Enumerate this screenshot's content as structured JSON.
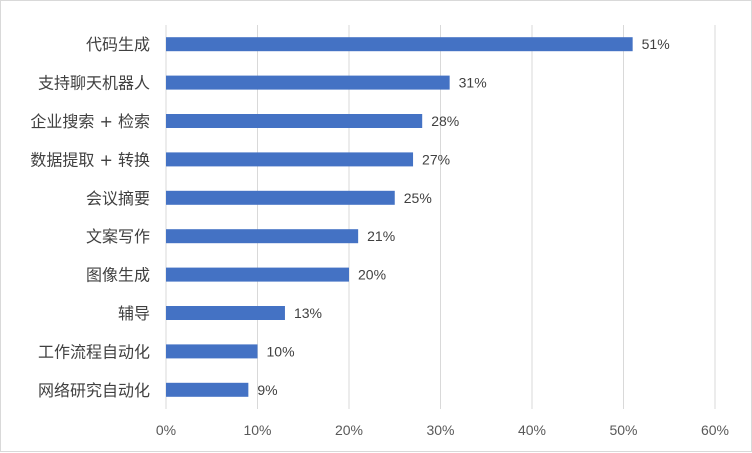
{
  "chart_data": {
    "type": "bar",
    "orientation": "horizontal",
    "title": "",
    "xlabel": "",
    "ylabel": "",
    "categories": [
      "代码生成",
      "支持聊天机器人",
      "企业搜索 + 检索",
      "数据提取 + 转换",
      "会议摘要",
      "文案写作",
      "图像生成",
      "辅导",
      "工作流程自动化",
      "网络研究自动化"
    ],
    "values": [
      51,
      31,
      28,
      27,
      25,
      21,
      20,
      13,
      10,
      9
    ],
    "value_labels": [
      "51%",
      "31%",
      "28%",
      "27%",
      "25%",
      "21%",
      "20%",
      "13%",
      "10%",
      "9%"
    ],
    "xlim": [
      0,
      60
    ],
    "x_ticks": [
      0,
      10,
      20,
      30,
      40,
      50,
      60
    ],
    "x_tick_labels": [
      "0%",
      "10%",
      "20%",
      "30%",
      "40%",
      "50%",
      "60%"
    ],
    "grid": "vertical",
    "legend": "none",
    "bar_color": "#4472c4",
    "grid_color": "#d9d9d9"
  }
}
